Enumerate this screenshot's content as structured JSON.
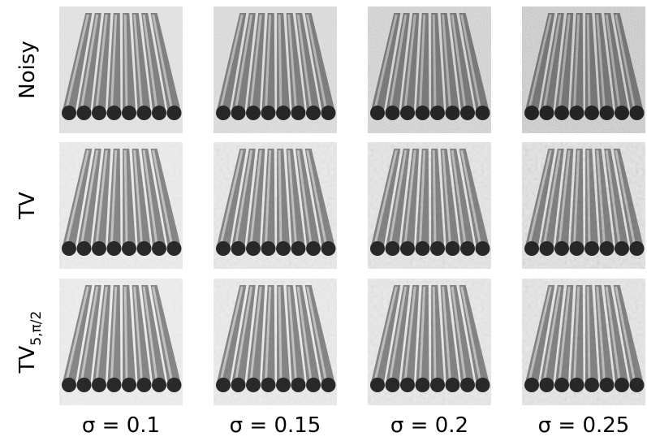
{
  "columns": [
    "σ = 0.1",
    "σ = 0.15",
    "σ = 0.2",
    "σ = 0.25"
  ],
  "rows": [
    {
      "label": "Noisy"
    },
    {
      "label": "TV"
    },
    {
      "label": "TV",
      "subscript": "5,π/2"
    }
  ]
}
